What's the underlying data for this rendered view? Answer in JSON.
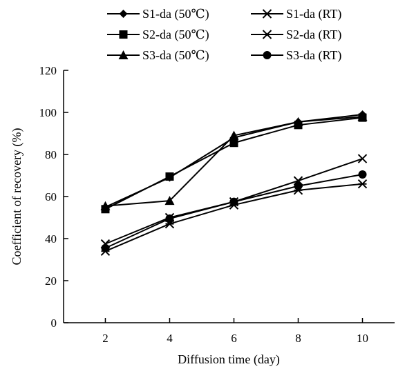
{
  "chart_data": {
    "type": "line",
    "title": "",
    "xlabel": "Diffusion time (day)",
    "ylabel": "Coefficient of recovery (%)",
    "x": [
      2,
      4,
      6,
      8,
      10
    ],
    "xlim": [
      0.7,
      11
    ],
    "ylim": [
      0,
      120
    ],
    "xticks": [
      "2",
      "4",
      "6",
      "8",
      "10"
    ],
    "yticks": [
      "0",
      "20",
      "40",
      "60",
      "80",
      "100",
      "120"
    ],
    "grid": false,
    "legend_position": "top",
    "series": [
      {
        "name": "S1-da (50℃)",
        "marker": "diamond",
        "values": [
          55,
          69,
          88,
          95.5,
          99
        ]
      },
      {
        "name": "S2-da (50℃)",
        "marker": "square",
        "values": [
          54,
          69.5,
          85.5,
          94,
          97.5
        ]
      },
      {
        "name": "S3-da (50℃)",
        "marker": "triangle",
        "values": [
          55.5,
          58,
          89,
          95.5,
          98
        ]
      },
      {
        "name": "S1-da (RT)",
        "marker": "x",
        "values": [
          37.5,
          50,
          57.5,
          67.5,
          78
        ]
      },
      {
        "name": "S2-da (RT)",
        "marker": "asterisk",
        "values": [
          34,
          47,
          56,
          63,
          66
        ]
      },
      {
        "name": "S3-da (RT)",
        "marker": "circle",
        "values": [
          35.5,
          49.5,
          57.5,
          65,
          70.5
        ]
      }
    ]
  }
}
